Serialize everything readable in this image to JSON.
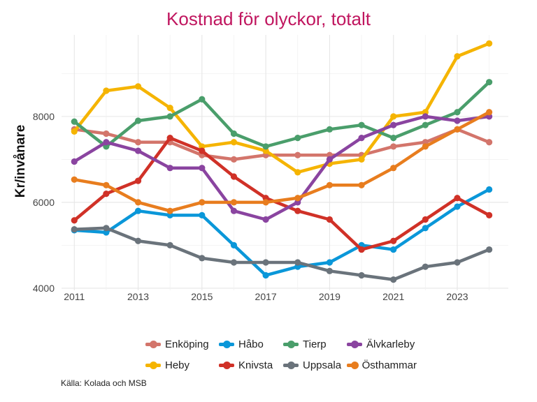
{
  "chart_data": {
    "type": "line",
    "title": "Kostnad för olyckor, totalt",
    "xlabel": "",
    "ylabel": "Kr/invånare",
    "source": "Källa: Kolada och MSB",
    "x": [
      2011,
      2012,
      2013,
      2014,
      2015,
      2016,
      2017,
      2018,
      2019,
      2020,
      2021,
      2022,
      2023,
      2024
    ],
    "x_ticks": [
      "2011",
      "2013",
      "2015",
      "2017",
      "2019",
      "2021",
      "2023"
    ],
    "y_ticks": [
      "4000",
      "6000",
      "8000"
    ],
    "xlim": [
      2010.6,
      2024.6
    ],
    "ylim": [
      3950,
      9900
    ],
    "grid": true,
    "legend_position": "bottom",
    "series": [
      {
        "name": "Enköping",
        "color": "#d3756b",
        "values": [
          7700,
          7600,
          7400,
          7400,
          7100,
          7000,
          7100,
          7100,
          7100,
          7100,
          7300,
          7400,
          7700,
          7400
        ]
      },
      {
        "name": "Heby",
        "color": "#f5b400",
        "values": [
          7650,
          8600,
          8700,
          8200,
          7300,
          7400,
          7200,
          6700,
          6900,
          7000,
          8000,
          8100,
          9400,
          9700
        ]
      },
      {
        "name": "Håbo",
        "color": "#0a97d9",
        "values": [
          5350,
          5300,
          5800,
          5700,
          5700,
          5000,
          4300,
          4500,
          4600,
          5000,
          4900,
          5400,
          5900,
          6300
        ]
      },
      {
        "name": "Knivsta",
        "color": "#d03127",
        "values": [
          5580,
          6200,
          6500,
          7500,
          7200,
          6600,
          6100,
          5800,
          5600,
          4900,
          5100,
          5600,
          6100,
          5700
        ]
      },
      {
        "name": "Tierp",
        "color": "#4a9e6b",
        "values": [
          7880,
          7300,
          7900,
          8000,
          8400,
          7600,
          7300,
          7500,
          7700,
          7800,
          7500,
          7800,
          8100,
          8800
        ]
      },
      {
        "name": "Uppsala",
        "color": "#6a737b",
        "values": [
          5370,
          5400,
          5100,
          5000,
          4700,
          4600,
          4600,
          4600,
          4400,
          4300,
          4200,
          4500,
          4600,
          4900
        ]
      },
      {
        "name": "Älvkarleby",
        "color": "#8a44a0",
        "values": [
          6950,
          7400,
          7200,
          6800,
          6800,
          5800,
          5600,
          6000,
          7000,
          7500,
          7800,
          8000,
          7900,
          8000
        ]
      },
      {
        "name": "Östhammar",
        "color": "#e87d1e",
        "values": [
          6530,
          6400,
          6000,
          5800,
          6000,
          6000,
          6000,
          6100,
          6400,
          6400,
          6800,
          7300,
          7700,
          8100
        ]
      }
    ]
  }
}
